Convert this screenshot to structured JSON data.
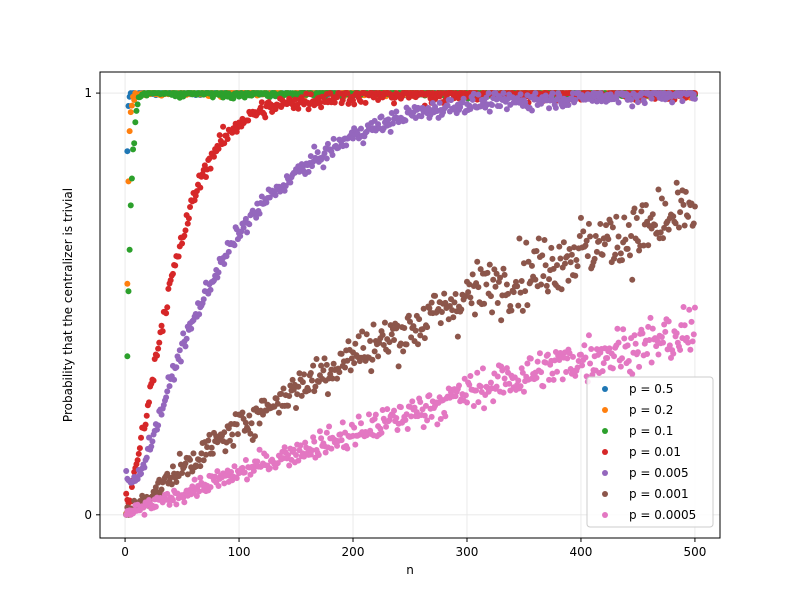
{
  "chart_data": {
    "type": "scatter",
    "title": "",
    "xlabel": "n",
    "ylabel": "Probability that the centralizer is trivial",
    "xlim": [
      -22,
      522
    ],
    "ylim": [
      -0.055,
      1.05
    ],
    "x_ticks": [
      0,
      100,
      200,
      300,
      400,
      500
    ],
    "y_ticks": [
      0,
      1
    ],
    "grid": true,
    "legend_position": "lower-right",
    "x_range": [
      1,
      500
    ],
    "series": [
      {
        "name": "p = 0.5",
        "color": "#1f77b4",
        "curve": "saturating",
        "k": 0.45,
        "noise": 0.004,
        "spread": 0,
        "points": [
          [
            1,
            0.0
          ],
          [
            2,
            0.86
          ],
          [
            3,
            0.97
          ],
          [
            4,
            0.99
          ],
          [
            5,
            1.0
          ],
          [
            6,
            1.0
          ],
          [
            7,
            1.0
          ],
          [
            8,
            1.0
          ],
          [
            9,
            1.0
          ],
          [
            10,
            1.0
          ]
        ]
      },
      {
        "name": "p = 0.2",
        "color": "#ff7f0e",
        "curve": "saturating",
        "k": 0.22,
        "noise": 0.006,
        "spread": 0,
        "points": [
          [
            1,
            0.0
          ],
          [
            2,
            0.55
          ],
          [
            3,
            0.79
          ],
          [
            4,
            0.91
          ],
          [
            5,
            0.95
          ],
          [
            6,
            0.97
          ],
          [
            7,
            0.99
          ],
          [
            8,
            0.99
          ],
          [
            9,
            1.0
          ],
          [
            10,
            1.0
          ],
          [
            12,
            1.0
          ],
          [
            14,
            1.0
          ],
          [
            16,
            1.0
          ]
        ]
      },
      {
        "name": "p = 0.1",
        "color": "#2ca02c",
        "curve": "saturating",
        "k": 0.105,
        "noise": 0.008,
        "spread": 0,
        "points": [
          [
            1,
            0.0
          ],
          [
            2,
            0.38
          ],
          [
            3,
            0.53
          ],
          [
            4,
            0.62
          ],
          [
            5,
            0.73
          ],
          [
            6,
            0.8
          ],
          [
            7,
            0.87
          ],
          [
            8,
            0.88
          ],
          [
            9,
            0.93
          ],
          [
            10,
            0.96
          ],
          [
            11,
            0.98
          ],
          [
            12,
            0.99
          ],
          [
            13,
            0.99
          ],
          [
            15,
            1.0
          ],
          [
            20,
            1.0
          ]
        ]
      },
      {
        "name": "p = 0.01",
        "color": "#d62728",
        "curve": "saturating",
        "k": 0.0185,
        "noise": 0.018,
        "spread": 0,
        "points": [
          [
            5,
            0.04
          ],
          [
            10,
            0.12
          ],
          [
            20,
            0.26
          ],
          [
            30,
            0.42
          ],
          [
            40,
            0.55
          ],
          [
            50,
            0.65
          ],
          [
            60,
            0.75
          ],
          [
            70,
            0.82
          ],
          [
            80,
            0.87
          ],
          [
            90,
            0.9
          ],
          [
            100,
            0.93
          ],
          [
            120,
            0.96
          ],
          [
            150,
            0.98
          ],
          [
            200,
            0.995
          ],
          [
            300,
            1.0
          ],
          [
            500,
            1.0
          ]
        ]
      },
      {
        "name": "p = 0.005",
        "color": "#9467bd",
        "curve": "saturating",
        "k": 0.0105,
        "noise": 0.018,
        "spread": 0,
        "points": [
          [
            10,
            0.08
          ],
          [
            25,
            0.19
          ],
          [
            50,
            0.4
          ],
          [
            75,
            0.55
          ],
          [
            100,
            0.67
          ],
          [
            125,
            0.75
          ],
          [
            150,
            0.81
          ],
          [
            200,
            0.9
          ],
          [
            250,
            0.95
          ],
          [
            300,
            0.975
          ],
          [
            400,
            0.99
          ],
          [
            500,
            1.0
          ]
        ]
      },
      {
        "name": "p = 0.001",
        "color": "#8c564b",
        "curve": "saturating",
        "k": 0.0023,
        "noise": 0.015,
        "spread": 0.05,
        "points": [
          [
            0,
            0.0
          ],
          [
            50,
            0.11
          ],
          [
            100,
            0.21
          ],
          [
            150,
            0.3
          ],
          [
            200,
            0.38
          ],
          [
            250,
            0.44
          ],
          [
            300,
            0.52
          ],
          [
            350,
            0.57
          ],
          [
            400,
            0.63
          ],
          [
            450,
            0.67
          ],
          [
            500,
            0.72
          ]
        ]
      },
      {
        "name": "p = 0.0005",
        "color": "#e377c2",
        "curve": "saturating",
        "k": 0.00112,
        "noise": 0.012,
        "spread": 0.055,
        "points": [
          [
            0,
            0.0
          ],
          [
            50,
            0.05
          ],
          [
            100,
            0.1
          ],
          [
            150,
            0.15
          ],
          [
            200,
            0.19
          ],
          [
            250,
            0.24
          ],
          [
            300,
            0.29
          ],
          [
            350,
            0.33
          ],
          [
            400,
            0.37
          ],
          [
            450,
            0.4
          ],
          [
            500,
            0.43
          ]
        ]
      }
    ]
  }
}
